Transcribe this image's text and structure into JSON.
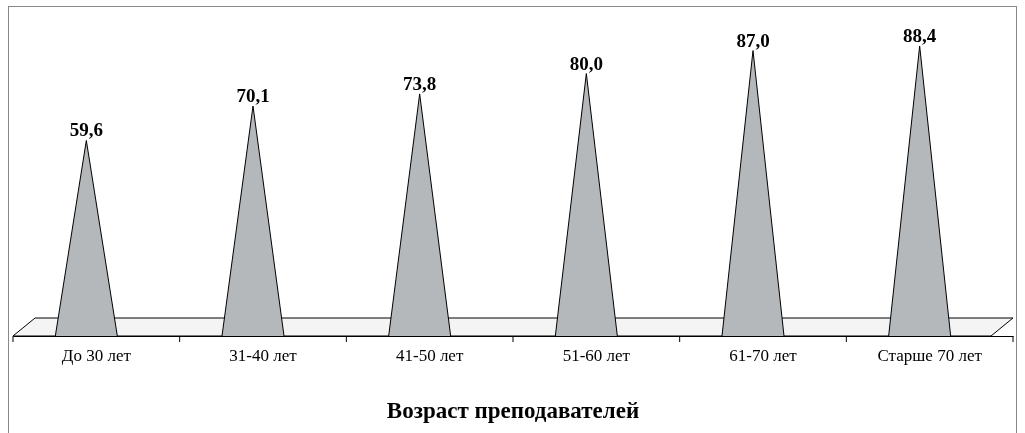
{
  "chart_data": {
    "type": "bar",
    "xlabel": "Возраст преподавателей",
    "categories": [
      "До 30 лет",
      "31-40 лет",
      "41-50 лет",
      "51-60 лет",
      "61-70 лет",
      "Старше 70 лет"
    ],
    "values": [
      59.6,
      70.1,
      73.8,
      80.0,
      87.0,
      88.4
    ],
    "value_labels": [
      "59,6",
      "70,1",
      "73,8",
      "80,0",
      "87,0",
      "88,4"
    ],
    "color": "#b4b8bb"
  }
}
